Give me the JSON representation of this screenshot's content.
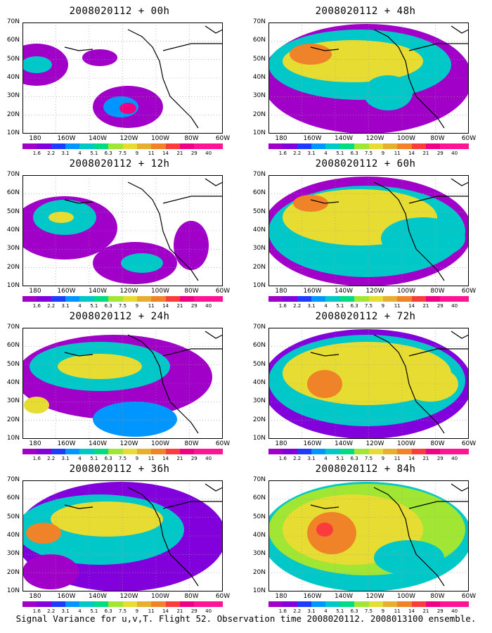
{
  "footer": "Signal Variance for u,v,T. Flight 52. Observation time 2008020112. 2008013100 ensemble.",
  "colorbar": {
    "labels": [
      "1.6",
      "2.2",
      "3.1",
      "4",
      "5.1",
      "6.3",
      "7.5",
      "9",
      "11",
      "14",
      "21",
      "29",
      "40"
    ],
    "colors": [
      "#a000c8",
      "#8200dc",
      "#1e3cff",
      "#0096ff",
      "#00c8c8",
      "#00dc82",
      "#a0e632",
      "#e6dc32",
      "#e6af2d",
      "#f08228",
      "#fa3c3c",
      "#f00082",
      "#ff1493"
    ]
  },
  "axes": {
    "ylabels": [
      "70N",
      "60N",
      "50N",
      "40N",
      "30N",
      "20N",
      "10N"
    ],
    "xlabels": [
      "180",
      "160W",
      "140W",
      "120W",
      "100W",
      "80W",
      "60W"
    ]
  },
  "chart_data": [
    {
      "type": "heatmap",
      "title": "2008020112 + 00h",
      "xlim": [
        "180",
        "60W"
      ],
      "ylim": [
        "10N",
        "70N"
      ]
    },
    {
      "type": "heatmap",
      "title": "2008020112 + 12h",
      "xlim": [
        "180",
        "60W"
      ],
      "ylim": [
        "10N",
        "70N"
      ]
    },
    {
      "type": "heatmap",
      "title": "2008020112 + 24h",
      "xlim": [
        "180",
        "60W"
      ],
      "ylim": [
        "10N",
        "70N"
      ]
    },
    {
      "type": "heatmap",
      "title": "2008020112 + 36h",
      "xlim": [
        "180",
        "60W"
      ],
      "ylim": [
        "10N",
        "70N"
      ]
    },
    {
      "type": "heatmap",
      "title": "2008020112 + 48h",
      "xlim": [
        "180",
        "60W"
      ],
      "ylim": [
        "10N",
        "70N"
      ]
    },
    {
      "type": "heatmap",
      "title": "2008020112 + 60h",
      "xlim": [
        "180",
        "60W"
      ],
      "ylim": [
        "10N",
        "70N"
      ]
    },
    {
      "type": "heatmap",
      "title": "2008020112 + 72h",
      "xlim": [
        "180",
        "60W"
      ],
      "ylim": [
        "10N",
        "70N"
      ]
    },
    {
      "type": "heatmap",
      "title": "2008020112 + 84h",
      "xlim": [
        "180",
        "60W"
      ],
      "ylim": [
        "10N",
        "70N"
      ]
    }
  ]
}
